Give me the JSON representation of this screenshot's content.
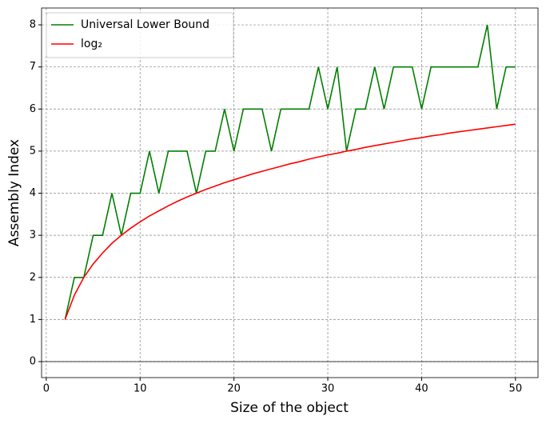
{
  "chart_data": {
    "type": "line",
    "xlabel": "Size of the object",
    "ylabel": "Assembly Index",
    "x": [
      2,
      3,
      4,
      5,
      6,
      7,
      8,
      9,
      10,
      11,
      12,
      13,
      14,
      15,
      16,
      17,
      18,
      19,
      20,
      21,
      22,
      23,
      24,
      25,
      26,
      27,
      28,
      29,
      30,
      31,
      32,
      33,
      34,
      35,
      36,
      37,
      38,
      39,
      40,
      41,
      42,
      43,
      44,
      45,
      46,
      47,
      48,
      49,
      50
    ],
    "series": [
      {
        "name": "Universal Lower Bound",
        "color": "#008000",
        "values": [
          1,
          2,
          2,
          3,
          3,
          4,
          3,
          4,
          4,
          5,
          4,
          5,
          5,
          5,
          4,
          5,
          5,
          6,
          5,
          6,
          6,
          6,
          5,
          6,
          6,
          6,
          6,
          7,
          6,
          7,
          5,
          6,
          6,
          7,
          6,
          7,
          7,
          7,
          6,
          7,
          7,
          7,
          7,
          7,
          7,
          8,
          6,
          7,
          7
        ]
      },
      {
        "name": "log₂",
        "color": "#ff0000",
        "values": [
          1,
          1.58,
          2,
          2.32,
          2.58,
          2.81,
          3,
          3.17,
          3.32,
          3.46,
          3.58,
          3.7,
          3.81,
          3.91,
          4,
          4.09,
          4.17,
          4.25,
          4.32,
          4.39,
          4.46,
          4.52,
          4.58,
          4.64,
          4.7,
          4.75,
          4.81,
          4.86,
          4.91,
          4.95,
          5,
          5.04,
          5.09,
          5.13,
          5.17,
          5.21,
          5.25,
          5.29,
          5.32,
          5.36,
          5.39,
          5.43,
          5.46,
          5.49,
          5.52,
          5.55,
          5.58,
          5.61,
          5.64
        ]
      }
    ],
    "xlim": [
      -0.5,
      52.4
    ],
    "ylim": [
      -0.38,
      8.4
    ],
    "xticks": [
      0,
      10,
      20,
      30,
      40,
      50
    ],
    "yticks": [
      0,
      1,
      2,
      3,
      4,
      5,
      6,
      7,
      8
    ],
    "hline": 0,
    "grid": true,
    "legend": "upper left"
  }
}
